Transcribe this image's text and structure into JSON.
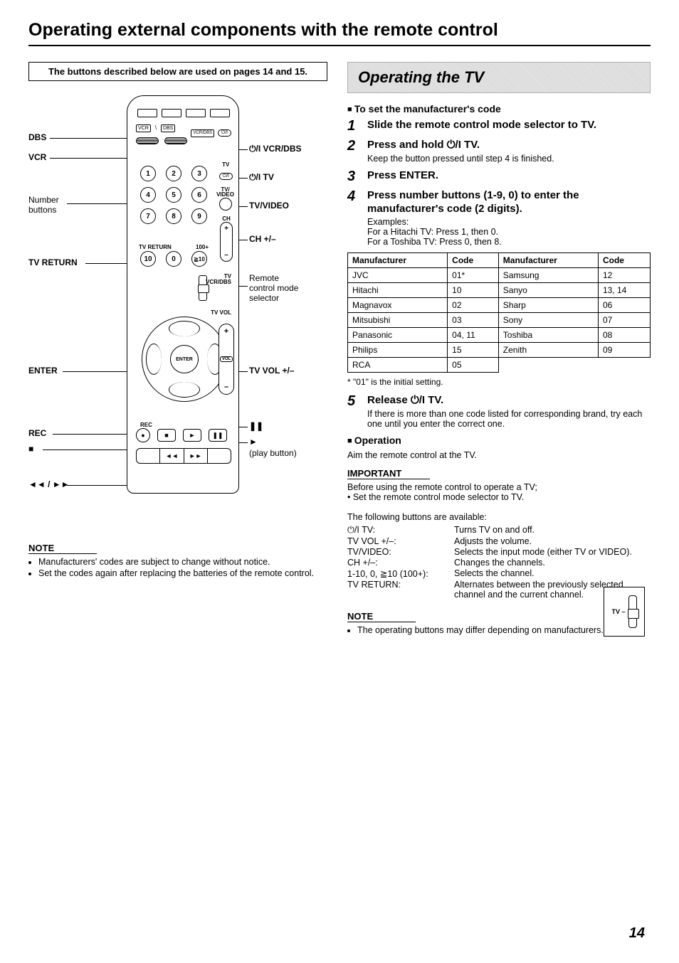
{
  "page_title": "Operating external components with the remote control",
  "page_number": "14",
  "left": {
    "buttons_note": "The buttons described below are used on pages 14 and 15.",
    "labels": {
      "dbs": "DBS",
      "vcr": "VCR",
      "number_buttons": "Number\nbuttons",
      "tv_return": "TV RETURN",
      "enter": "ENTER",
      "rec": "REC",
      "stop": "■",
      "rw_ff": "◄◄ / ►►",
      "vcr_dbs_power": "⏻/I VCR/DBS",
      "tv_power": "⏻/I TV",
      "tv_video": "TV/VIDEO",
      "ch": "CH +/–",
      "mode_selector": "Remote\ncontrol mode\nselector",
      "tv_vol_label": "TV VOL",
      "tv_vol": "TV VOL +/–",
      "pause": "❚❚",
      "play": "►",
      "play_text": "(play button)"
    },
    "remote_text": {
      "vcr_box": "VCR",
      "dbs_box": "DBS",
      "vcrdbs_box": "VCR/DBS",
      "off_pill": "⏻/I",
      "tv_lbl": "TV",
      "tvvideo_lbl": "TV/\nVIDEO",
      "ch_lbl": "CH",
      "tvreturn_lbl": "TV RETURN",
      "hundred": "100+",
      "mode_lbl": "TV\nVCR/DBS",
      "rec_lbl": "REC",
      "enter_lbl": "ENTER",
      "vol_mid": "VOL"
    },
    "note_header": "NOTE",
    "notes": [
      "Manufacturers' codes are subject to change without notice.",
      "Set the codes again after replacing the batteries of the remote control."
    ]
  },
  "right": {
    "banner": "Operating the TV",
    "set_code_header": "To set the manufacturer's code",
    "steps": [
      {
        "n": "1",
        "head": "Slide the remote control mode selector to TV."
      },
      {
        "n": "2",
        "head": "Press and hold ⏻/I TV.",
        "sub": "Keep the button pressed until step 4 is finished."
      },
      {
        "n": "3",
        "head": "Press ENTER."
      },
      {
        "n": "4",
        "head": "Press number buttons (1-9, 0) to enter the manufacturer's code (2 digits).",
        "sub": "Examples:\nFor a Hitachi TV: Press 1, then 0.\nFor a Toshiba TV: Press 0, then 8."
      }
    ],
    "table": {
      "headers": [
        "Manufacturer",
        "Code",
        "Manufacturer",
        "Code"
      ],
      "rows": [
        [
          "JVC",
          "01*",
          "Samsung",
          "12"
        ],
        [
          "Hitachi",
          "10",
          "Sanyo",
          "13, 14"
        ],
        [
          "Magnavox",
          "02",
          "Sharp",
          "06"
        ],
        [
          "Mitsubishi",
          "03",
          "Sony",
          "07"
        ],
        [
          "Panasonic",
          "04, 11",
          "Toshiba",
          "08"
        ],
        [
          "Philips",
          "15",
          "Zenith",
          "09"
        ],
        [
          "RCA",
          "05",
          "",
          ""
        ]
      ]
    },
    "table_footnote": "* \"01\" is the initial setting.",
    "step5": {
      "n": "5",
      "head": "Release ⏻/I TV.",
      "sub": "If there is more than one code listed for corresponding brand, try each one until you enter the correct one."
    },
    "operation_header": "Operation",
    "operation_text": "Aim the remote control at the TV.",
    "important_header": "IMPORTANT",
    "important_lines": [
      "Before using the remote control to operate a TV;",
      "• Set the remote control mode selector to TV."
    ],
    "available_intro": "The following buttons are available:",
    "available": [
      {
        "k": "⏻/I TV:",
        "v": "Turns TV on and off."
      },
      {
        "k": "TV VOL +/–:",
        "v": "Adjusts the volume."
      },
      {
        "k": "TV/VIDEO:",
        "v": "Selects the input mode (either TV or VIDEO)."
      },
      {
        "k": "CH +/–:",
        "v": "Changes the channels."
      },
      {
        "k": "1-10, 0, ≧10 (100+):",
        "v": "Selects the channel."
      },
      {
        "k": "TV RETURN:",
        "v": "Alternates between the previously selected channel and the current channel."
      }
    ],
    "switch_label": "TV –",
    "note2_header": "NOTE",
    "note2": "The operating buttons may differ depending on manufacturers."
  }
}
